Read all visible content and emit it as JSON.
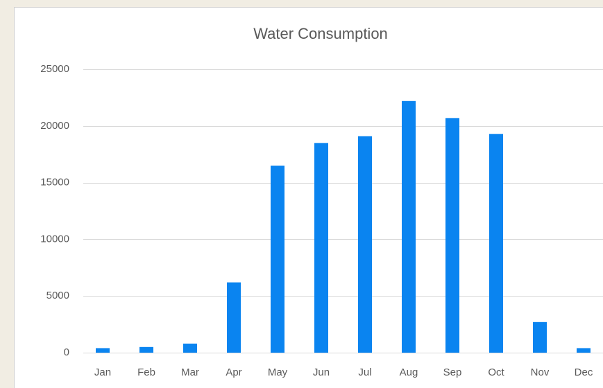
{
  "chart_data": {
    "type": "bar",
    "title": "Water Consumption",
    "categories": [
      "Jan",
      "Feb",
      "Mar",
      "Apr",
      "May",
      "Jun",
      "Jul",
      "Aug",
      "Sep",
      "Oct",
      "Nov",
      "Dec"
    ],
    "values": [
      400,
      500,
      800,
      6200,
      16500,
      18500,
      19100,
      22200,
      20700,
      19300,
      2700,
      400
    ],
    "color": "#0a84f0",
    "ylim": [
      0,
      25000
    ],
    "yticks": [
      0,
      5000,
      10000,
      15000,
      20000,
      25000
    ],
    "grid": true
  }
}
